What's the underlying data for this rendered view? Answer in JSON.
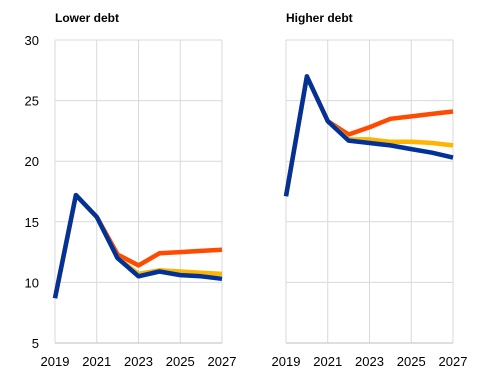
{
  "chart_data": [
    {
      "type": "line",
      "title": "Lower debt",
      "x": [
        2019,
        2020,
        2021,
        2022,
        2023,
        2024,
        2025,
        2026,
        2027
      ],
      "x_ticks": [
        "2019",
        "2021",
        "2023",
        "2025",
        "2027"
      ],
      "y_ticks": [
        "5",
        "10",
        "15",
        "20",
        "25",
        "30"
      ],
      "ylim": [
        5,
        30
      ],
      "grid": true,
      "series": [
        {
          "color": "#FF4B00",
          "values": [
            8.7,
            17.2,
            15.4,
            12.3,
            11.4,
            12.4,
            12.5,
            12.6,
            12.7
          ]
        },
        {
          "color": "#FFB400",
          "values": [
            8.7,
            17.2,
            15.4,
            12.0,
            10.7,
            11.0,
            10.9,
            10.8,
            10.7
          ]
        },
        {
          "color": "#003299",
          "values": [
            8.7,
            17.2,
            15.4,
            12.0,
            10.5,
            10.9,
            10.6,
            10.5,
            10.3
          ]
        }
      ]
    },
    {
      "type": "line",
      "title": "Higher debt",
      "x": [
        2019,
        2020,
        2021,
        2022,
        2023,
        2024,
        2025,
        2026,
        2027
      ],
      "x_ticks": [
        "2019",
        "2021",
        "2023",
        "2025",
        "2027"
      ],
      "ylim": [
        5,
        30
      ],
      "grid": true,
      "series": [
        {
          "color": "#FF4B00",
          "values": [
            17.1,
            27.0,
            23.3,
            22.2,
            22.8,
            23.5,
            23.7,
            23.9,
            24.1
          ]
        },
        {
          "color": "#FFB400",
          "values": [
            17.1,
            27.0,
            23.3,
            21.8,
            21.8,
            21.6,
            21.6,
            21.5,
            21.3
          ]
        },
        {
          "color": "#003299",
          "values": [
            17.1,
            27.0,
            23.3,
            21.7,
            21.5,
            21.3,
            21.0,
            20.7,
            20.3
          ]
        }
      ]
    }
  ]
}
